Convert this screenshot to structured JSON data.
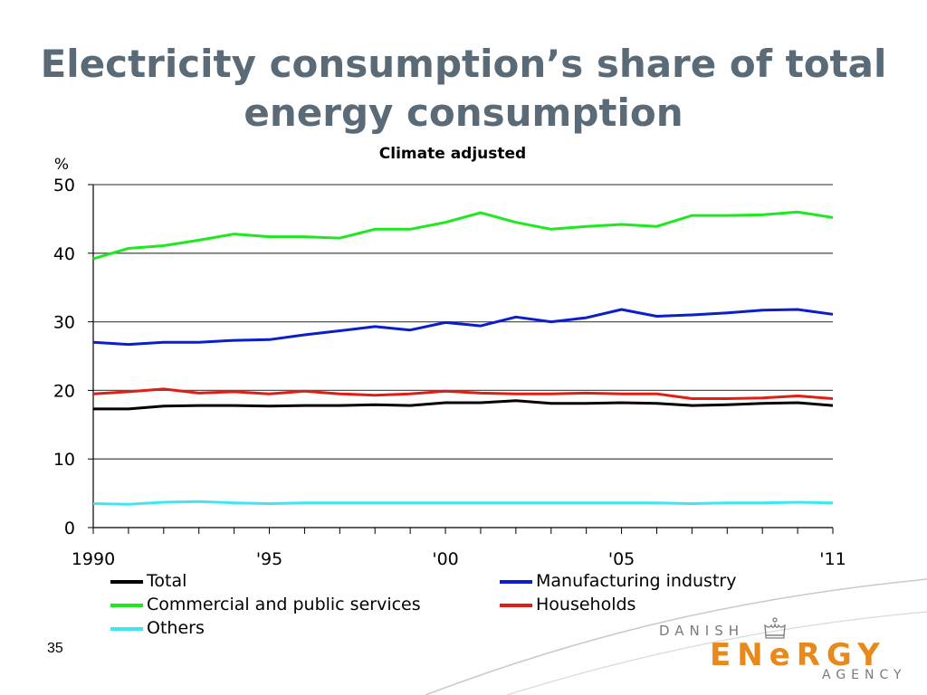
{
  "slide": {
    "title_line1": "Electricity consumption’s share of total",
    "title_line2": "energy consumption",
    "page_number": "35",
    "logo": {
      "top_text": "DANISH",
      "main_text": "ENeRGY",
      "bottom_text": "AGENCY",
      "icon": "crown-icon",
      "main_color": "#e8891c",
      "text_color": "#7a7a7a"
    }
  },
  "chart_data": {
    "type": "line",
    "title": "Climate adjusted",
    "ylabel": "%",
    "xlabel": "",
    "ylim": [
      0,
      50
    ],
    "yticks": [
      0,
      10,
      20,
      30,
      40,
      50
    ],
    "x": [
      1990,
      1991,
      1992,
      1993,
      1994,
      1995,
      1996,
      1997,
      1998,
      1999,
      2000,
      2001,
      2002,
      2003,
      2004,
      2005,
      2006,
      2007,
      2008,
      2009,
      2010,
      2011
    ],
    "xtick_labels": [
      {
        "x": 1990,
        "label": "1990"
      },
      {
        "x": 1995,
        "label": "'95"
      },
      {
        "x": 2000,
        "label": "'00"
      },
      {
        "x": 2005,
        "label": "'05"
      },
      {
        "x": 2011,
        "label": "'11"
      }
    ],
    "grid": "horizontal",
    "legend_position": "bottom",
    "series": [
      {
        "name": "Total",
        "color": "#000000",
        "values": [
          17.3,
          17.3,
          17.7,
          17.8,
          17.8,
          17.7,
          17.8,
          17.8,
          17.9,
          17.8,
          18.2,
          18.2,
          18.5,
          18.1,
          18.1,
          18.2,
          18.1,
          17.8,
          17.9,
          18.1,
          18.2,
          17.8
        ]
      },
      {
        "name": "Manufacturing industry",
        "color": "#0a1ecc",
        "values": [
          27.0,
          26.7,
          27.0,
          27.0,
          27.3,
          27.4,
          28.1,
          28.7,
          29.3,
          28.8,
          29.9,
          29.4,
          30.7,
          30.0,
          30.6,
          31.8,
          30.8,
          31.0,
          31.3,
          31.7,
          31.8,
          31.1
        ]
      },
      {
        "name": "Commercial and public services",
        "color": "#1ee81e",
        "values": [
          39.2,
          40.7,
          41.1,
          41.9,
          42.8,
          42.4,
          42.4,
          42.2,
          43.5,
          43.5,
          44.5,
          45.9,
          44.5,
          43.5,
          43.9,
          44.2,
          43.9,
          45.5,
          45.5,
          45.6,
          46.0,
          45.2
        ]
      },
      {
        "name": "Households",
        "color": "#e01e14",
        "values": [
          19.5,
          19.8,
          20.2,
          19.6,
          19.8,
          19.5,
          19.9,
          19.5,
          19.3,
          19.5,
          19.9,
          19.6,
          19.5,
          19.5,
          19.6,
          19.5,
          19.5,
          18.8,
          18.8,
          18.9,
          19.2,
          18.8
        ]
      },
      {
        "name": "Others",
        "color": "#3ee8f0",
        "values": [
          3.5,
          3.4,
          3.7,
          3.8,
          3.6,
          3.5,
          3.6,
          3.6,
          3.6,
          3.6,
          3.6,
          3.6,
          3.6,
          3.6,
          3.6,
          3.6,
          3.6,
          3.5,
          3.6,
          3.6,
          3.7,
          3.6
        ]
      }
    ]
  }
}
